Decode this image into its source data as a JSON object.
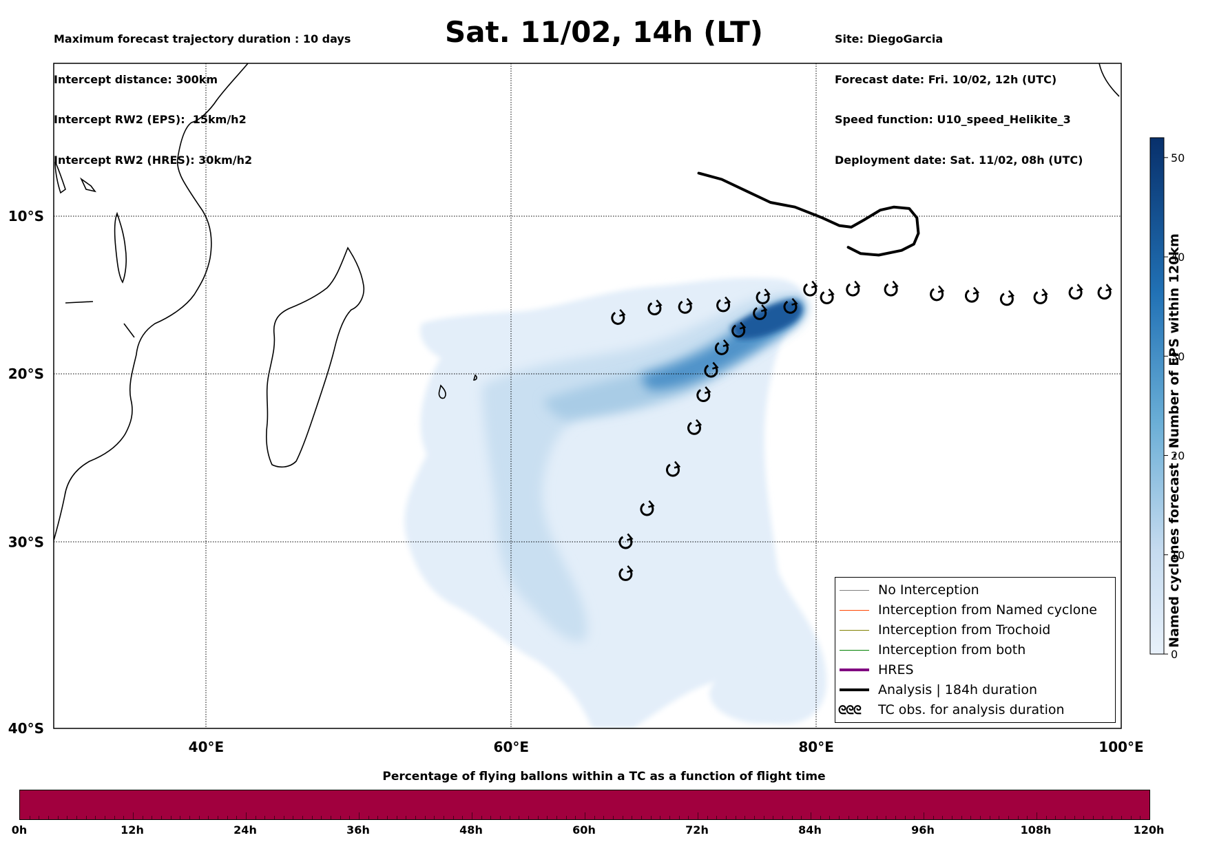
{
  "header_left": [
    "Maximum forecast trajectory duration : 10 days",
    "Intercept distance: 300km",
    "Intercept RW2 (EPS):  15km/h2",
    "Intercept RW2 (HRES): 30km/h2"
  ],
  "header_right": [
    "Site: DiegoGarcia",
    "Forecast date: Fri. 10/02, 12h (UTC)",
    "Speed function: U10_speed_Helikite_3",
    "Deployment date: Sat. 11/02, 08h (UTC)"
  ],
  "title": "Sat. 11/02, 14h (LT)",
  "map": {
    "lon_range": [
      30,
      100
    ],
    "lat_range": [
      -40,
      0
    ],
    "lon_ticks": [
      {
        "value": 40,
        "label": "40°E"
      },
      {
        "value": 60,
        "label": "60°E"
      },
      {
        "value": 80,
        "label": "80°E"
      },
      {
        "value": 100,
        "label": "100°E"
      }
    ],
    "lat_ticks": [
      {
        "value": -10,
        "label": "10°S"
      },
      {
        "value": -20,
        "label": "20°S"
      },
      {
        "value": -30,
        "label": "30°S"
      },
      {
        "value": -40,
        "label": "40°S"
      }
    ],
    "grid": "dotted",
    "analysis_track": [
      [
        72.3,
        -7.2
      ],
      [
        73.8,
        -7.6
      ],
      [
        75.5,
        -8.4
      ],
      [
        77.0,
        -9.1
      ],
      [
        78.6,
        -9.4
      ],
      [
        80.4,
        -10.1
      ],
      [
        81.5,
        -10.6
      ],
      [
        82.3,
        -10.7
      ],
      [
        83.2,
        -10.2
      ],
      [
        84.2,
        -9.6
      ],
      [
        85.1,
        -9.4
      ],
      [
        86.1,
        -9.5
      ],
      [
        86.6,
        -10.1
      ],
      [
        86.7,
        -11.1
      ],
      [
        86.4,
        -11.8
      ],
      [
        85.6,
        -12.2
      ],
      [
        84.1,
        -12.5
      ],
      [
        82.9,
        -12.4
      ],
      [
        82.1,
        -12.0
      ]
    ],
    "tc_observations": [
      [
        67.0,
        -16.5
      ],
      [
        69.4,
        -15.9
      ],
      [
        71.4,
        -15.8
      ],
      [
        73.9,
        -15.7
      ],
      [
        76.5,
        -15.2
      ],
      [
        79.6,
        -14.7
      ],
      [
        80.7,
        -15.2
      ],
      [
        82.4,
        -14.7
      ],
      [
        84.9,
        -14.7
      ],
      [
        87.9,
        -15.0
      ],
      [
        90.2,
        -15.1
      ],
      [
        92.5,
        -15.3
      ],
      [
        94.7,
        -15.2
      ],
      [
        97.0,
        -14.9
      ],
      [
        98.9,
        -14.9
      ],
      [
        78.3,
        -15.8
      ],
      [
        76.3,
        -16.2
      ],
      [
        74.9,
        -17.3
      ],
      [
        73.8,
        -18.4
      ],
      [
        73.1,
        -19.8
      ],
      [
        72.6,
        -21.3
      ],
      [
        72.0,
        -23.3
      ],
      [
        70.6,
        -25.8
      ],
      [
        68.9,
        -28.1
      ],
      [
        67.5,
        -30.0
      ],
      [
        67.5,
        -31.8
      ]
    ],
    "tc_symbol": "cyclone-circle-arrow-icon",
    "density_cmap": "Blues"
  },
  "colorbar": {
    "title": "Named cyclones forecast - Number of EPS within 120km",
    "min": 0,
    "max": 52,
    "ticks": [
      {
        "value": 0,
        "label": "0"
      },
      {
        "value": 10,
        "label": "10"
      },
      {
        "value": 20,
        "label": "20"
      },
      {
        "value": 30,
        "label": "30"
      },
      {
        "value": 40,
        "label": "40"
      },
      {
        "value": 50,
        "label": "50"
      }
    ],
    "color_low": "#e6f0fa",
    "color_high": "#08306b"
  },
  "legend": {
    "items": [
      {
        "label": "No Interception",
        "color": "#808080",
        "width": 1
      },
      {
        "label": "Interception from Named cyclone",
        "color": "#ff4500",
        "width": 1
      },
      {
        "label": "Interception from Trochoid",
        "color": "#808000",
        "width": 1
      },
      {
        "label": "Interception from both",
        "color": "#008000",
        "width": 1
      },
      {
        "label": "HRES",
        "color": "#800080",
        "width": 4
      },
      {
        "label": "Analysis | 184h duration",
        "color": "#000000",
        "width": 4
      },
      {
        "label": "TC obs. for analysis duration",
        "symbol": "ᘓᘓᘓ"
      }
    ]
  },
  "flight_bar": {
    "title": "Percentage of flying ballons within a TC as a function of flight time",
    "color": "#a1003e",
    "tick_labels": [
      "0h",
      "12h",
      "24h",
      "36h",
      "48h",
      "60h",
      "72h",
      "84h",
      "96h",
      "108h",
      "120h"
    ]
  }
}
